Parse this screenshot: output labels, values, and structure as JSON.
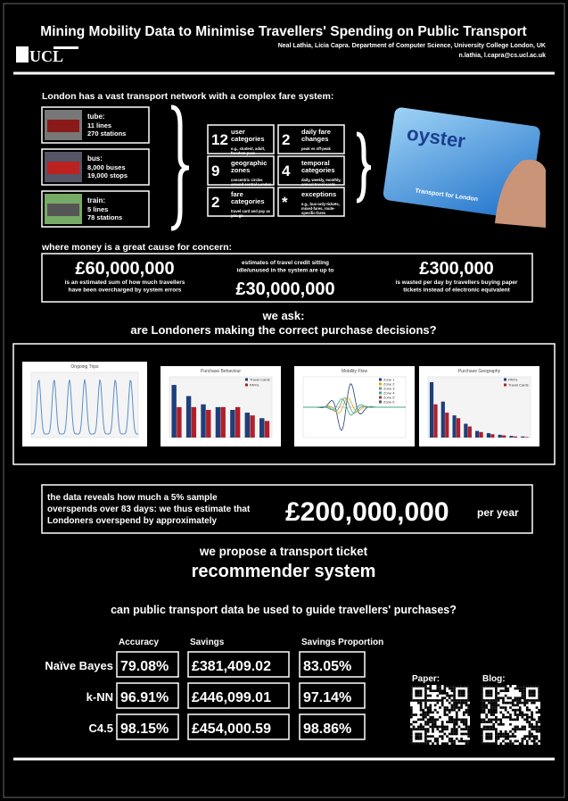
{
  "title": "Mining Mobility Data to Minimise Travellers' Spending on Public Transport",
  "authors": "Neal Lathia, Licia Capra. Department of Computer Science, University College London, UK",
  "emails": "n.lathia, l.capra@cs.ucl.ac.uk",
  "logo": "UCL",
  "intro": "London has a vast transport network with a complex fare system:",
  "modes": [
    {
      "label": "tube:",
      "lines": [
        "11 lines",
        "270 stations"
      ]
    },
    {
      "label": "bus:",
      "lines": [
        "8,000 buses",
        "19,000 stops"
      ]
    },
    {
      "label": "train:",
      "lines": [
        "5 lines",
        "78 stations"
      ]
    }
  ],
  "fare_factors": [
    {
      "number": "12",
      "title": [
        "user",
        "categories"
      ],
      "detail": [
        "e.g., student, adult,",
        "freedom pass"
      ]
    },
    {
      "number": "2",
      "title": [
        "daily fare",
        "changes"
      ],
      "detail": [
        "peak vs off-peak"
      ]
    },
    {
      "number": "9",
      "title": [
        "geographic",
        "zones"
      ],
      "detail": [
        "concentric circles",
        "around central London"
      ]
    },
    {
      "number": "4",
      "title": [
        "temporal",
        "categories"
      ],
      "detail": [
        "daily, weekly, monthly,",
        "annual travel cards"
      ]
    },
    {
      "number": "2",
      "title": [
        "fare",
        "categories"
      ],
      "detail": [
        "travel card and pay as",
        "you go"
      ]
    },
    {
      "number": "*",
      "title": [
        "exceptions"
      ],
      "detail": [
        "e.g., bus-only-tickets,",
        "mixed-fares, route-",
        "specific-fares"
      ]
    }
  ],
  "oyster": {
    "brand": "oyster",
    "caption": "Transport for London"
  },
  "concern": {
    "heading": "where money is a great cause for concern:",
    "items": [
      {
        "amount": "£60,000,000",
        "text": [
          "is an estimated sum of how much travellers",
          "have been overcharged by system errors"
        ]
      },
      {
        "amount": "£30,000,000",
        "text": [
          "estimates of travel credit sitting",
          "idle/unused in the system are up to"
        ]
      },
      {
        "amount": "£300,000",
        "text": [
          "is wasted per day by travellers buying paper",
          "tickets instead of electronic equivalent"
        ]
      }
    ]
  },
  "ask": {
    "lead": "we ask:",
    "question": "are Londoners making the correct purchase decisions?"
  },
  "charts": [
    {
      "title": "Ongoing Trips",
      "legend": []
    },
    {
      "title": "Purchase Behaviour",
      "legend": [
        "Travel Cards",
        "PAYG"
      ],
      "ylim": [
        0,
        100
      ],
      "series": [
        {
          "name": "Travel Cards",
          "color": "#1f3f7a",
          "values": [
            95,
            75,
            60,
            55,
            50,
            45,
            35
          ]
        },
        {
          "name": "PAYG",
          "color": "#b0202a",
          "values": [
            55,
            55,
            50,
            55,
            55,
            40,
            30
          ]
        }
      ]
    },
    {
      "title": "Mobility Flow",
      "legend": [
        "Zone 1",
        "Zone 2",
        "Zone 3",
        "Zone 4",
        "Zone 5",
        "Zone 6"
      ]
    },
    {
      "title": "Purchase Geography",
      "legend": [
        "PAYG",
        "Travel Cards"
      ],
      "ylim": [
        0,
        100
      ],
      "series": [
        {
          "name": "PAYG",
          "color": "#1f3f7a",
          "values": [
            100,
            65,
            40,
            25,
            12,
            8,
            5,
            3,
            2
          ]
        },
        {
          "name": "Travel Cards",
          "color": "#b0202a",
          "values": [
            60,
            45,
            35,
            20,
            10,
            6,
            4,
            2,
            1
          ]
        }
      ]
    }
  ],
  "estimate": {
    "text": [
      "the data reveals how much a 5% sample",
      "overspends over 83 days: we thus estimate that",
      "Londoners overspend by approximately"
    ],
    "amount": "£200,000,000",
    "unit": "per year"
  },
  "proposal": {
    "lead": "we propose a transport ticket",
    "headline": "recommender system"
  },
  "question": "can public transport data be used to guide travellers' purchases?",
  "results": {
    "columns": [
      "Accuracy",
      "Savings",
      "Savings Proportion"
    ],
    "rows": [
      {
        "method": "Naïve Bayes",
        "values": [
          "79.08%",
          "£381,409.02",
          "83.05%"
        ]
      },
      {
        "method": "k-NN",
        "values": [
          "96.91%",
          "£446,099.01",
          "97.14%"
        ]
      },
      {
        "method": "C4.5",
        "values": [
          "98.15%",
          "£454,000.59",
          "98.86%"
        ]
      }
    ]
  },
  "links": [
    "Paper:",
    "Blog:"
  ]
}
